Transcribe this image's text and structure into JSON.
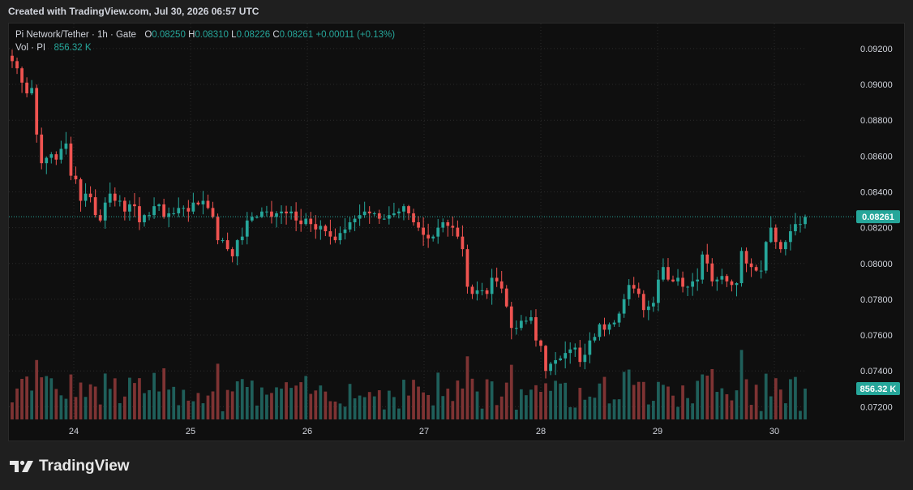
{
  "caption": "Created with TradingView.com, Jul 30, 2026 06:57 UTC",
  "legend": {
    "symbol": "Pi Network/Tether · 1h · Gate",
    "o_label": "O",
    "o_value": "0.08250",
    "h_label": "H",
    "h_value": "0.08310",
    "l_label": "L",
    "l_value": "0.08226",
    "c_label": "C",
    "c_value": "0.08261",
    "change": "+0.00011 (+0.13%)",
    "vol_label": "Vol · PI",
    "vol_value": "856.32 K"
  },
  "brand": {
    "name": "TradingView",
    "logo_icon": "tradingview-logo-icon"
  },
  "colors": {
    "up": "#26a69a",
    "down": "#ef5350",
    "vol_up": "#1f5f5a",
    "vol_down": "#7e3333",
    "background": "#0f0f0f",
    "grid": "#2a2a2a",
    "text": "#d1d4dc"
  },
  "chart_data": {
    "type": "candlestick",
    "title": "Pi Network/Tether · 1h · Gate",
    "x_ticks": [
      "24",
      "25",
      "26",
      "27",
      "28",
      "29",
      "30"
    ],
    "y_ticks": [
      "0.09200",
      "0.09000",
      "0.08800",
      "0.08600",
      "0.08400",
      "0.08200",
      "0.08000",
      "0.07800",
      "0.07600",
      "0.07400",
      "0.07200"
    ],
    "ylim": [
      0.0712,
      0.0934
    ],
    "last_price": "0.08261",
    "last_volume": "856.32 K",
    "grid": true,
    "closes": [
      0.0913,
      0.0909,
      0.0901,
      0.0895,
      0.0898,
      0.0872,
      0.0856,
      0.0859,
      0.0861,
      0.0858,
      0.0864,
      0.0867,
      0.0849,
      0.0847,
      0.0835,
      0.0839,
      0.0837,
      0.0827,
      0.0824,
      0.0834,
      0.0839,
      0.0835,
      0.0835,
      0.0829,
      0.0833,
      0.0832,
      0.0823,
      0.0827,
      0.0827,
      0.0832,
      0.0833,
      0.0826,
      0.0828,
      0.0828,
      0.0831,
      0.0831,
      0.0829,
      0.0834,
      0.0833,
      0.0835,
      0.0831,
      0.0826,
      0.0813,
      0.0813,
      0.0808,
      0.0804,
      0.0813,
      0.0815,
      0.0824,
      0.0826,
      0.0826,
      0.0829,
      0.0829,
      0.0826,
      0.0828,
      0.0829,
      0.0828,
      0.0829,
      0.0824,
      0.0822,
      0.0825,
      0.0822,
      0.0819,
      0.0821,
      0.0818,
      0.0815,
      0.0813,
      0.0817,
      0.0819,
      0.0823,
      0.0825,
      0.0827,
      0.0829,
      0.0828,
      0.0828,
      0.0825,
      0.0825,
      0.0827,
      0.0828,
      0.0829,
      0.0832,
      0.0828,
      0.0823,
      0.082,
      0.0816,
      0.0814,
      0.0815,
      0.082,
      0.0823,
      0.0821,
      0.082,
      0.0815,
      0.0808,
      0.0787,
      0.0783,
      0.0785,
      0.0785,
      0.0783,
      0.0792,
      0.079,
      0.0786,
      0.0776,
      0.0764,
      0.0764,
      0.0768,
      0.0768,
      0.077,
      0.0757,
      0.0754,
      0.074,
      0.0744,
      0.0746,
      0.0747,
      0.075,
      0.0752,
      0.0753,
      0.0745,
      0.0749,
      0.0757,
      0.0759,
      0.0766,
      0.0763,
      0.0766,
      0.0767,
      0.0772,
      0.078,
      0.0788,
      0.0786,
      0.0783,
      0.0774,
      0.0776,
      0.0778,
      0.0791,
      0.0798,
      0.0791,
      0.079,
      0.0792,
      0.0787,
      0.0787,
      0.079,
      0.0791,
      0.0805,
      0.08,
      0.079,
      0.0791,
      0.0793,
      0.079,
      0.0788,
      0.0789,
      0.0807,
      0.08,
      0.0798,
      0.0796,
      0.0796,
      0.0812,
      0.082,
      0.0812,
      0.0808,
      0.0812,
      0.0818,
      0.0822,
      0.0822,
      0.0826
    ]
  }
}
